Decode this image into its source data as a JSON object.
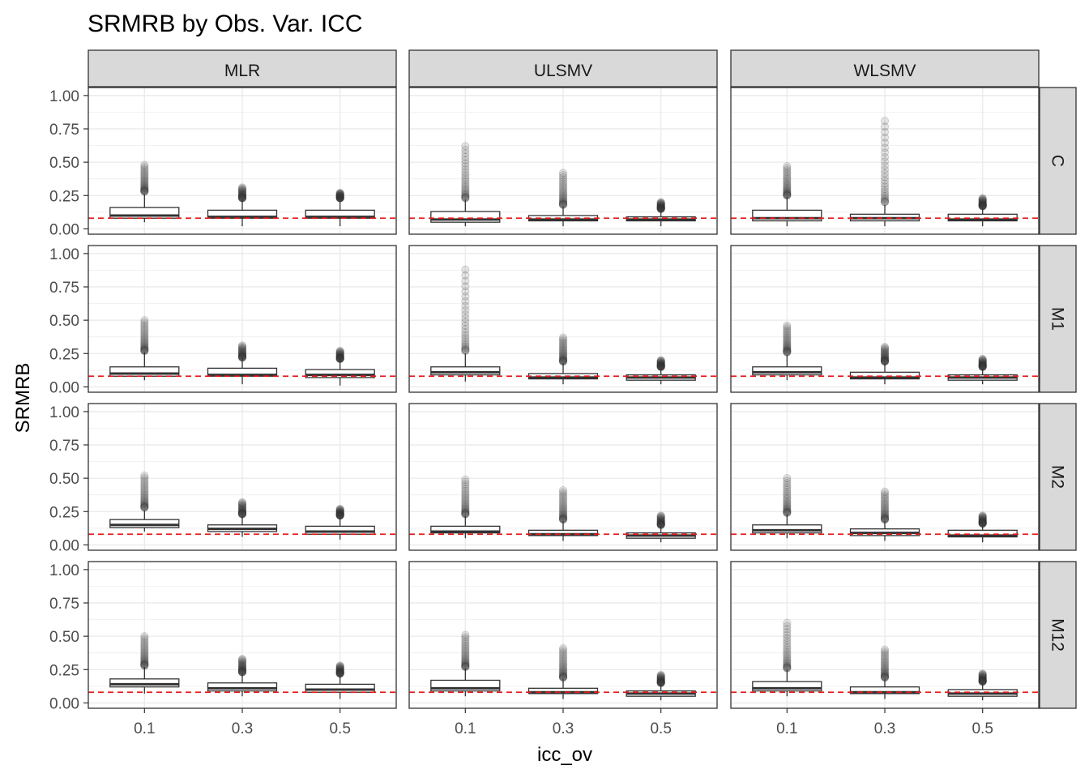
{
  "chart_data": {
    "type": "boxplot",
    "title": "SRMRB by Obs. Var. ICC",
    "xlabel": "icc_ov",
    "ylabel": "SRMRB",
    "categories": [
      "0.1",
      "0.3",
      "0.5"
    ],
    "ylim": [
      -0.04,
      1.06
    ],
    "yticks": [
      "0.00",
      "0.25",
      "0.50",
      "0.75",
      "1.00"
    ],
    "ytick_values": [
      0,
      0.25,
      0.5,
      0.75,
      1.0
    ],
    "reference_line": {
      "value": 0.08,
      "color": "#E41A1C",
      "style": "dashed"
    },
    "grid": true,
    "column_facets": [
      "MLR",
      "ULSMV",
      "WLSMV"
    ],
    "row_facets": [
      "C",
      "M1",
      "M2",
      "M12"
    ],
    "colors": {
      "strip_fill": "#D9D9D9",
      "panel_border": "#333333",
      "grid": "#EBEBEB",
      "box_line": "#333333",
      "outlier": "#333333"
    },
    "panels": [
      {
        "row": "C",
        "col": "MLR",
        "boxes": [
          {
            "x": "0.1",
            "lower": 0.05,
            "q1": 0.08,
            "median": 0.1,
            "q3": 0.16,
            "upper": 0.26,
            "outlier_min": 0.28,
            "outlier_max": 0.48
          },
          {
            "x": "0.3",
            "lower": 0.02,
            "q1": 0.08,
            "median": 0.09,
            "q3": 0.14,
            "upper": 0.22,
            "outlier_min": 0.23,
            "outlier_max": 0.31
          },
          {
            "x": "0.5",
            "lower": 0.02,
            "q1": 0.08,
            "median": 0.09,
            "q3": 0.14,
            "upper": 0.21,
            "outlier_min": 0.23,
            "outlier_max": 0.27
          }
        ]
      },
      {
        "row": "C",
        "col": "ULSMV",
        "boxes": [
          {
            "x": "0.1",
            "lower": 0.02,
            "q1": 0.05,
            "median": 0.07,
            "q3": 0.13,
            "upper": 0.22,
            "outlier_min": 0.23,
            "outlier_max": 0.62
          },
          {
            "x": "0.3",
            "lower": 0.02,
            "q1": 0.06,
            "median": 0.07,
            "q3": 0.1,
            "upper": 0.17,
            "outlier_min": 0.18,
            "outlier_max": 0.42
          },
          {
            "x": "0.5",
            "lower": 0.02,
            "q1": 0.06,
            "median": 0.07,
            "q3": 0.09,
            "upper": 0.14,
            "outlier_min": 0.15,
            "outlier_max": 0.2
          }
        ]
      },
      {
        "row": "C",
        "col": "WLSMV",
        "boxes": [
          {
            "x": "0.1",
            "lower": 0.02,
            "q1": 0.06,
            "median": 0.08,
            "q3": 0.14,
            "upper": 0.24,
            "outlier_min": 0.25,
            "outlier_max": 0.47
          },
          {
            "x": "0.3",
            "lower": 0.02,
            "q1": 0.06,
            "median": 0.08,
            "q3": 0.11,
            "upper": 0.18,
            "outlier_min": 0.2,
            "outlier_max": 0.81
          },
          {
            "x": "0.5",
            "lower": 0.02,
            "q1": 0.06,
            "median": 0.07,
            "q3": 0.11,
            "upper": 0.16,
            "outlier_min": 0.17,
            "outlier_max": 0.23
          }
        ]
      },
      {
        "row": "M1",
        "col": "MLR",
        "boxes": [
          {
            "x": "0.1",
            "lower": 0.05,
            "q1": 0.08,
            "median": 0.1,
            "q3": 0.15,
            "upper": 0.26,
            "outlier_min": 0.27,
            "outlier_max": 0.5
          },
          {
            "x": "0.3",
            "lower": 0.02,
            "q1": 0.08,
            "median": 0.09,
            "q3": 0.14,
            "upper": 0.22,
            "outlier_min": 0.22,
            "outlier_max": 0.31
          },
          {
            "x": "0.5",
            "lower": 0.01,
            "q1": 0.07,
            "median": 0.09,
            "q3": 0.13,
            "upper": 0.21,
            "outlier_min": 0.21,
            "outlier_max": 0.27
          }
        ]
      },
      {
        "row": "M1",
        "col": "ULSMV",
        "boxes": [
          {
            "x": "0.1",
            "lower": 0.04,
            "q1": 0.09,
            "median": 0.11,
            "q3": 0.15,
            "upper": 0.25,
            "outlier_min": 0.27,
            "outlier_max": 0.88
          },
          {
            "x": "0.3",
            "lower": 0.02,
            "q1": 0.06,
            "median": 0.07,
            "q3": 0.1,
            "upper": 0.18,
            "outlier_min": 0.19,
            "outlier_max": 0.37
          },
          {
            "x": "0.5",
            "lower": 0.02,
            "q1": 0.05,
            "median": 0.07,
            "q3": 0.09,
            "upper": 0.14,
            "outlier_min": 0.15,
            "outlier_max": 0.2
          }
        ]
      },
      {
        "row": "M1",
        "col": "WLSMV",
        "boxes": [
          {
            "x": "0.1",
            "lower": 0.05,
            "q1": 0.09,
            "median": 0.11,
            "q3": 0.15,
            "upper": 0.24,
            "outlier_min": 0.26,
            "outlier_max": 0.46
          },
          {
            "x": "0.3",
            "lower": 0.02,
            "q1": 0.06,
            "median": 0.07,
            "q3": 0.11,
            "upper": 0.18,
            "outlier_min": 0.19,
            "outlier_max": 0.3
          },
          {
            "x": "0.5",
            "lower": 0.02,
            "q1": 0.05,
            "median": 0.07,
            "q3": 0.09,
            "upper": 0.14,
            "outlier_min": 0.15,
            "outlier_max": 0.21
          }
        ]
      },
      {
        "row": "M2",
        "col": "MLR",
        "boxes": [
          {
            "x": "0.1",
            "lower": 0.1,
            "q1": 0.13,
            "median": 0.15,
            "q3": 0.19,
            "upper": 0.26,
            "outlier_min": 0.28,
            "outlier_max": 0.52
          },
          {
            "x": "0.3",
            "lower": 0.06,
            "q1": 0.1,
            "median": 0.12,
            "q3": 0.15,
            "upper": 0.22,
            "outlier_min": 0.23,
            "outlier_max": 0.32
          },
          {
            "x": "0.5",
            "lower": 0.04,
            "q1": 0.08,
            "median": 0.1,
            "q3": 0.14,
            "upper": 0.21,
            "outlier_min": 0.22,
            "outlier_max": 0.27
          }
        ]
      },
      {
        "row": "M2",
        "col": "ULSMV",
        "boxes": [
          {
            "x": "0.1",
            "lower": 0.05,
            "q1": 0.09,
            "median": 0.1,
            "q3": 0.14,
            "upper": 0.22,
            "outlier_min": 0.23,
            "outlier_max": 0.49
          },
          {
            "x": "0.3",
            "lower": 0.03,
            "q1": 0.07,
            "median": 0.08,
            "q3": 0.11,
            "upper": 0.18,
            "outlier_min": 0.19,
            "outlier_max": 0.41
          },
          {
            "x": "0.5",
            "lower": 0.02,
            "q1": 0.05,
            "median": 0.07,
            "q3": 0.09,
            "upper": 0.14,
            "outlier_min": 0.15,
            "outlier_max": 0.22
          }
        ]
      },
      {
        "row": "M2",
        "col": "WLSMV",
        "boxes": [
          {
            "x": "0.1",
            "lower": 0.05,
            "q1": 0.09,
            "median": 0.11,
            "q3": 0.15,
            "upper": 0.23,
            "outlier_min": 0.24,
            "outlier_max": 0.5
          },
          {
            "x": "0.3",
            "lower": 0.03,
            "q1": 0.07,
            "median": 0.09,
            "q3": 0.12,
            "upper": 0.18,
            "outlier_min": 0.19,
            "outlier_max": 0.4
          },
          {
            "x": "0.5",
            "lower": 0.02,
            "q1": 0.06,
            "median": 0.07,
            "q3": 0.11,
            "upper": 0.15,
            "outlier_min": 0.16,
            "outlier_max": 0.22
          }
        ]
      },
      {
        "row": "M12",
        "col": "MLR",
        "boxes": [
          {
            "x": "0.1",
            "lower": 0.07,
            "q1": 0.12,
            "median": 0.14,
            "q3": 0.18,
            "upper": 0.27,
            "outlier_min": 0.28,
            "outlier_max": 0.5
          },
          {
            "x": "0.3",
            "lower": 0.05,
            "q1": 0.09,
            "median": 0.11,
            "q3": 0.15,
            "upper": 0.22,
            "outlier_min": 0.23,
            "outlier_max": 0.33
          },
          {
            "x": "0.5",
            "lower": 0.03,
            "q1": 0.08,
            "median": 0.1,
            "q3": 0.14,
            "upper": 0.21,
            "outlier_min": 0.22,
            "outlier_max": 0.28
          }
        ]
      },
      {
        "row": "M12",
        "col": "ULSMV",
        "boxes": [
          {
            "x": "0.1",
            "lower": 0.05,
            "q1": 0.09,
            "median": 0.11,
            "q3": 0.17,
            "upper": 0.26,
            "outlier_min": 0.27,
            "outlier_max": 0.51
          },
          {
            "x": "0.3",
            "lower": 0.03,
            "q1": 0.07,
            "median": 0.08,
            "q3": 0.11,
            "upper": 0.18,
            "outlier_min": 0.19,
            "outlier_max": 0.41
          },
          {
            "x": "0.5",
            "lower": 0.02,
            "q1": 0.05,
            "median": 0.07,
            "q3": 0.09,
            "upper": 0.14,
            "outlier_min": 0.15,
            "outlier_max": 0.21
          }
        ]
      },
      {
        "row": "M12",
        "col": "WLSMV",
        "boxes": [
          {
            "x": "0.1",
            "lower": 0.05,
            "q1": 0.09,
            "median": 0.11,
            "q3": 0.16,
            "upper": 0.25,
            "outlier_min": 0.26,
            "outlier_max": 0.6
          },
          {
            "x": "0.3",
            "lower": 0.03,
            "q1": 0.07,
            "median": 0.08,
            "q3": 0.12,
            "upper": 0.18,
            "outlier_min": 0.19,
            "outlier_max": 0.4
          },
          {
            "x": "0.5",
            "lower": 0.02,
            "q1": 0.05,
            "median": 0.07,
            "q3": 0.1,
            "upper": 0.15,
            "outlier_min": 0.16,
            "outlier_max": 0.22
          }
        ]
      }
    ]
  }
}
